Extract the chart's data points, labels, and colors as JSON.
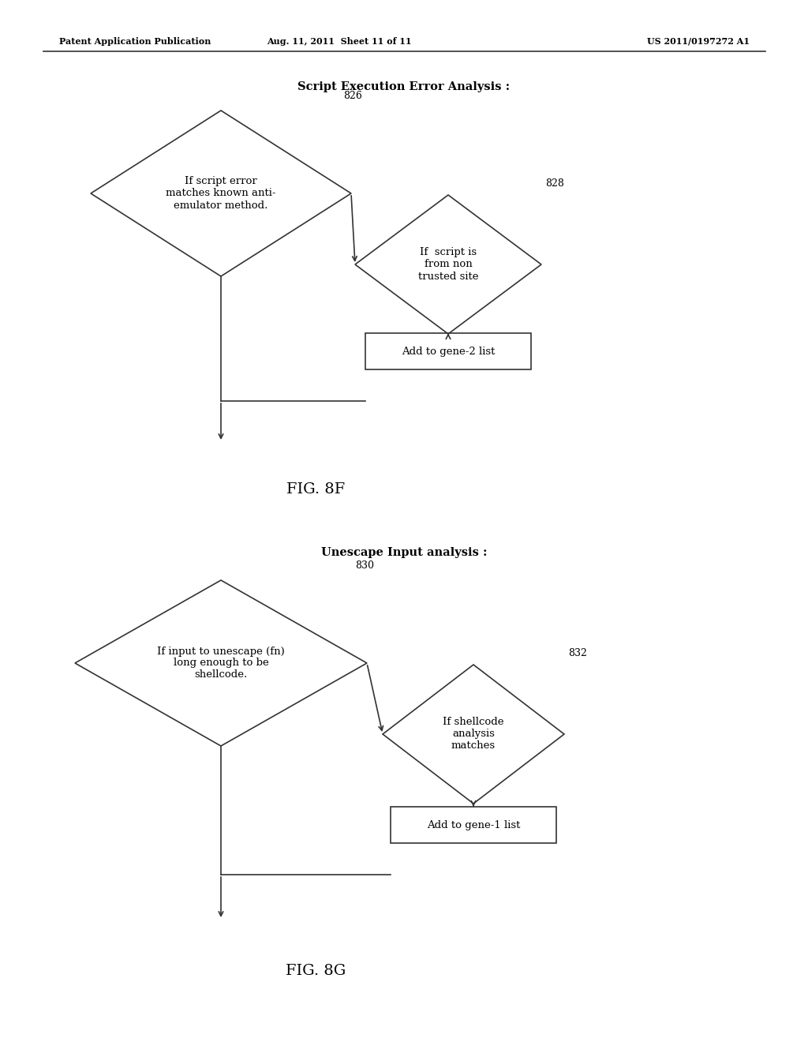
{
  "bg_color": "#ffffff",
  "header_left": "Patent Application Publication",
  "header_mid": "Aug. 11, 2011  Sheet 11 of 11",
  "header_right": "US 2011/0197272 A1",
  "fig8f": {
    "title": "Script Execution Error Analysis :",
    "diamond1_label": "If script error\nmatches known anti-\nemulator method.",
    "diamond1_num": "826",
    "diamond2_label": "If  script is\nfrom non\ntrusted site",
    "diamond2_num": "828",
    "rect_label": "Add to gene-2 list",
    "fig_label": "FIG. 8F"
  },
  "fig8g": {
    "title": "Unescape Input analysis :",
    "diamond1_label": "If input to unescape (fn)\nlong enough to be\nshellcode.",
    "diamond1_num": "830",
    "diamond2_label": "If shellcode\nanalysis\nmatches",
    "diamond2_num": "832",
    "rect_label": "Add to gene-1 list",
    "fig_label": "FIG. 8G"
  }
}
